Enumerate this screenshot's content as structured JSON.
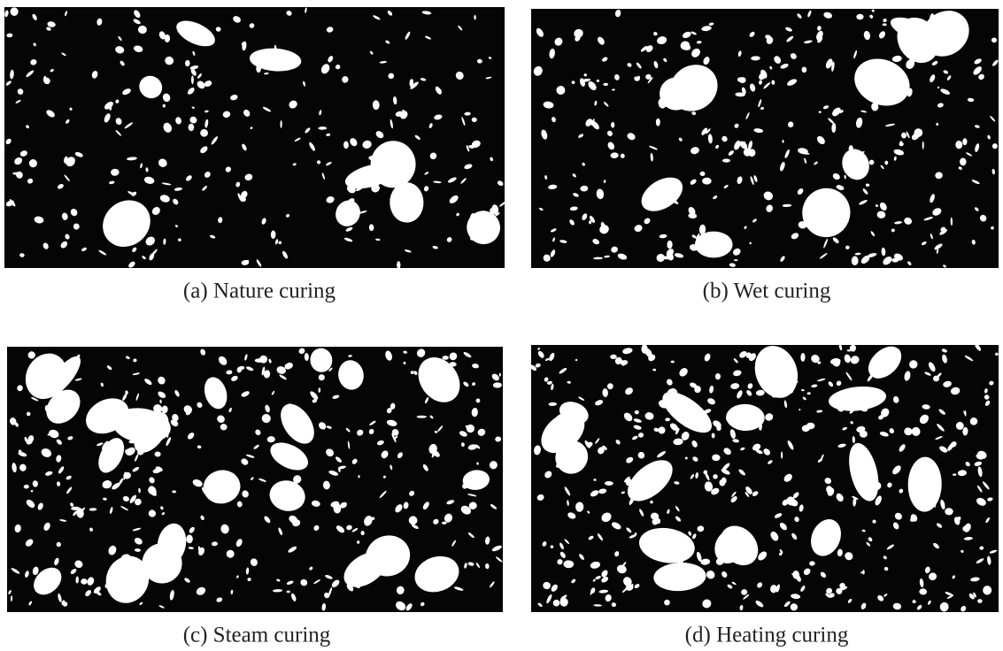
{
  "figure": {
    "panels": [
      {
        "caption": "(a) Nature curing"
      },
      {
        "caption": "(b) Wet curing"
      },
      {
        "caption": "(c) Steam curing"
      },
      {
        "caption": "(d) Heating curing"
      }
    ]
  }
}
